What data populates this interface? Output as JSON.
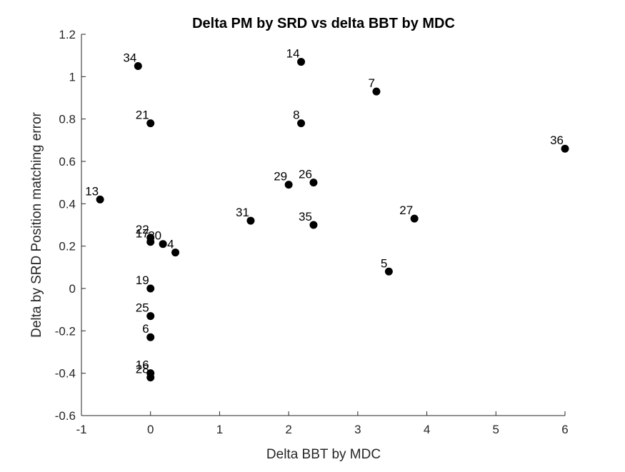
{
  "chart_data": {
    "type": "scatter",
    "title": "Delta PM by SRD vs delta BBT by MDC",
    "xlabel": "Delta BBT by MDC",
    "ylabel": "Delta by SRD Position matching error",
    "xlim": [
      -1,
      6
    ],
    "ylim": [
      -0.6,
      1.2
    ],
    "xticks": [
      -1,
      0,
      1,
      2,
      3,
      4,
      5,
      6
    ],
    "xtick_labels": [
      "-1",
      "0",
      "1",
      "2",
      "3",
      "4",
      "5",
      "6"
    ],
    "yticks": [
      -0.6,
      -0.4,
      -0.2,
      0,
      0.2,
      0.4,
      0.6,
      0.8,
      1.0,
      1.2
    ],
    "ytick_labels": [
      "-0.6",
      "-0.4",
      "-0.2",
      "0",
      "0.2",
      "0.4",
      "0.6",
      "0.8",
      "1",
      "1.2"
    ],
    "grid": false,
    "marker_color": "#000000",
    "points": [
      {
        "label": "34",
        "x": -0.18,
        "y": 1.05
      },
      {
        "label": "14",
        "x": 2.18,
        "y": 1.07
      },
      {
        "label": "7",
        "x": 3.27,
        "y": 0.93
      },
      {
        "label": "21",
        "x": 0.0,
        "y": 0.78
      },
      {
        "label": "8",
        "x": 2.18,
        "y": 0.78
      },
      {
        "label": "36",
        "x": 6.0,
        "y": 0.66
      },
      {
        "label": "29",
        "x": 2.0,
        "y": 0.49
      },
      {
        "label": "26",
        "x": 2.36,
        "y": 0.5
      },
      {
        "label": "13",
        "x": -0.73,
        "y": 0.42
      },
      {
        "label": "27",
        "x": 3.82,
        "y": 0.33
      },
      {
        "label": "31",
        "x": 1.45,
        "y": 0.32
      },
      {
        "label": "35",
        "x": 2.36,
        "y": 0.3
      },
      {
        "label": "22",
        "x": 0.0,
        "y": 0.24
      },
      {
        "label": "17",
        "x": 0.0,
        "y": 0.22
      },
      {
        "label": "20",
        "x": 0.18,
        "y": 0.21
      },
      {
        "label": "4",
        "x": 0.36,
        "y": 0.17
      },
      {
        "label": "5",
        "x": 3.45,
        "y": 0.08
      },
      {
        "label": "19",
        "x": 0.0,
        "y": 0.0
      },
      {
        "label": "25",
        "x": 0.0,
        "y": -0.13
      },
      {
        "label": "6",
        "x": 0.0,
        "y": -0.23
      },
      {
        "label": "16",
        "x": 0.0,
        "y": -0.4
      },
      {
        "label": "28",
        "x": 0.0,
        "y": -0.42
      }
    ]
  }
}
